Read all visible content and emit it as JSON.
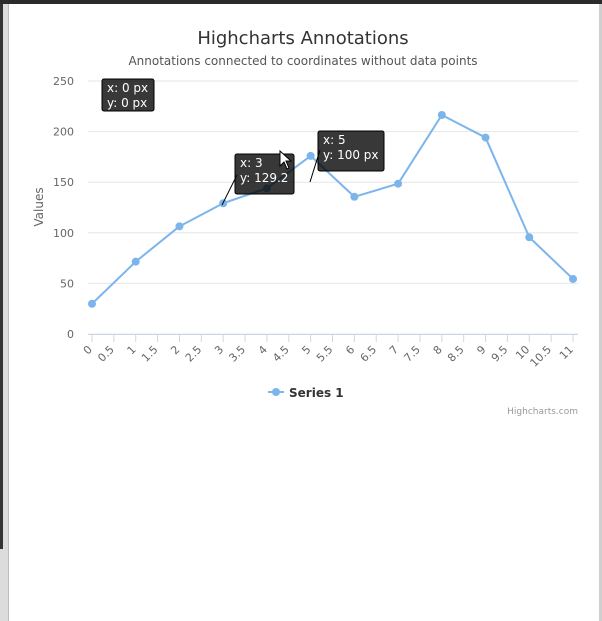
{
  "chart_data": {
    "type": "line",
    "title": "Highcharts Annotations",
    "subtitle": "Annotations connected to coordinates without data points",
    "ylabel": "Values",
    "xlabel": "",
    "ylim": [
      0,
      250
    ],
    "yticks": [
      0,
      50,
      100,
      150,
      200,
      250
    ],
    "xlim": [
      0,
      11
    ],
    "xticks": [
      0,
      0.5,
      1,
      1.5,
      2,
      2.5,
      3,
      3.5,
      4,
      4.5,
      5,
      5.5,
      6,
      6.5,
      7,
      7.5,
      8,
      8.5,
      9,
      9.5,
      10,
      10.5,
      11
    ],
    "grid": true,
    "legend_position": "bottom-center",
    "series": [
      {
        "name": "Series 1",
        "color": "#7cb5ec",
        "x": [
          0,
          1,
          2,
          3,
          4,
          5,
          6,
          7,
          8,
          9,
          10,
          11
        ],
        "y": [
          29.9,
          71.5,
          106.4,
          129.2,
          144,
          176,
          135.6,
          148.5,
          216.4,
          194.1,
          95.6,
          54.4
        ]
      }
    ],
    "annotations": [
      {
        "line1": "x: 0 px",
        "line2": "y: 0 px"
      },
      {
        "line1": "x: 3",
        "line2": "y: 129.2"
      },
      {
        "line1": "x: 5",
        "line2": "y: 100 px"
      }
    ],
    "credits": "Highcharts.com"
  }
}
